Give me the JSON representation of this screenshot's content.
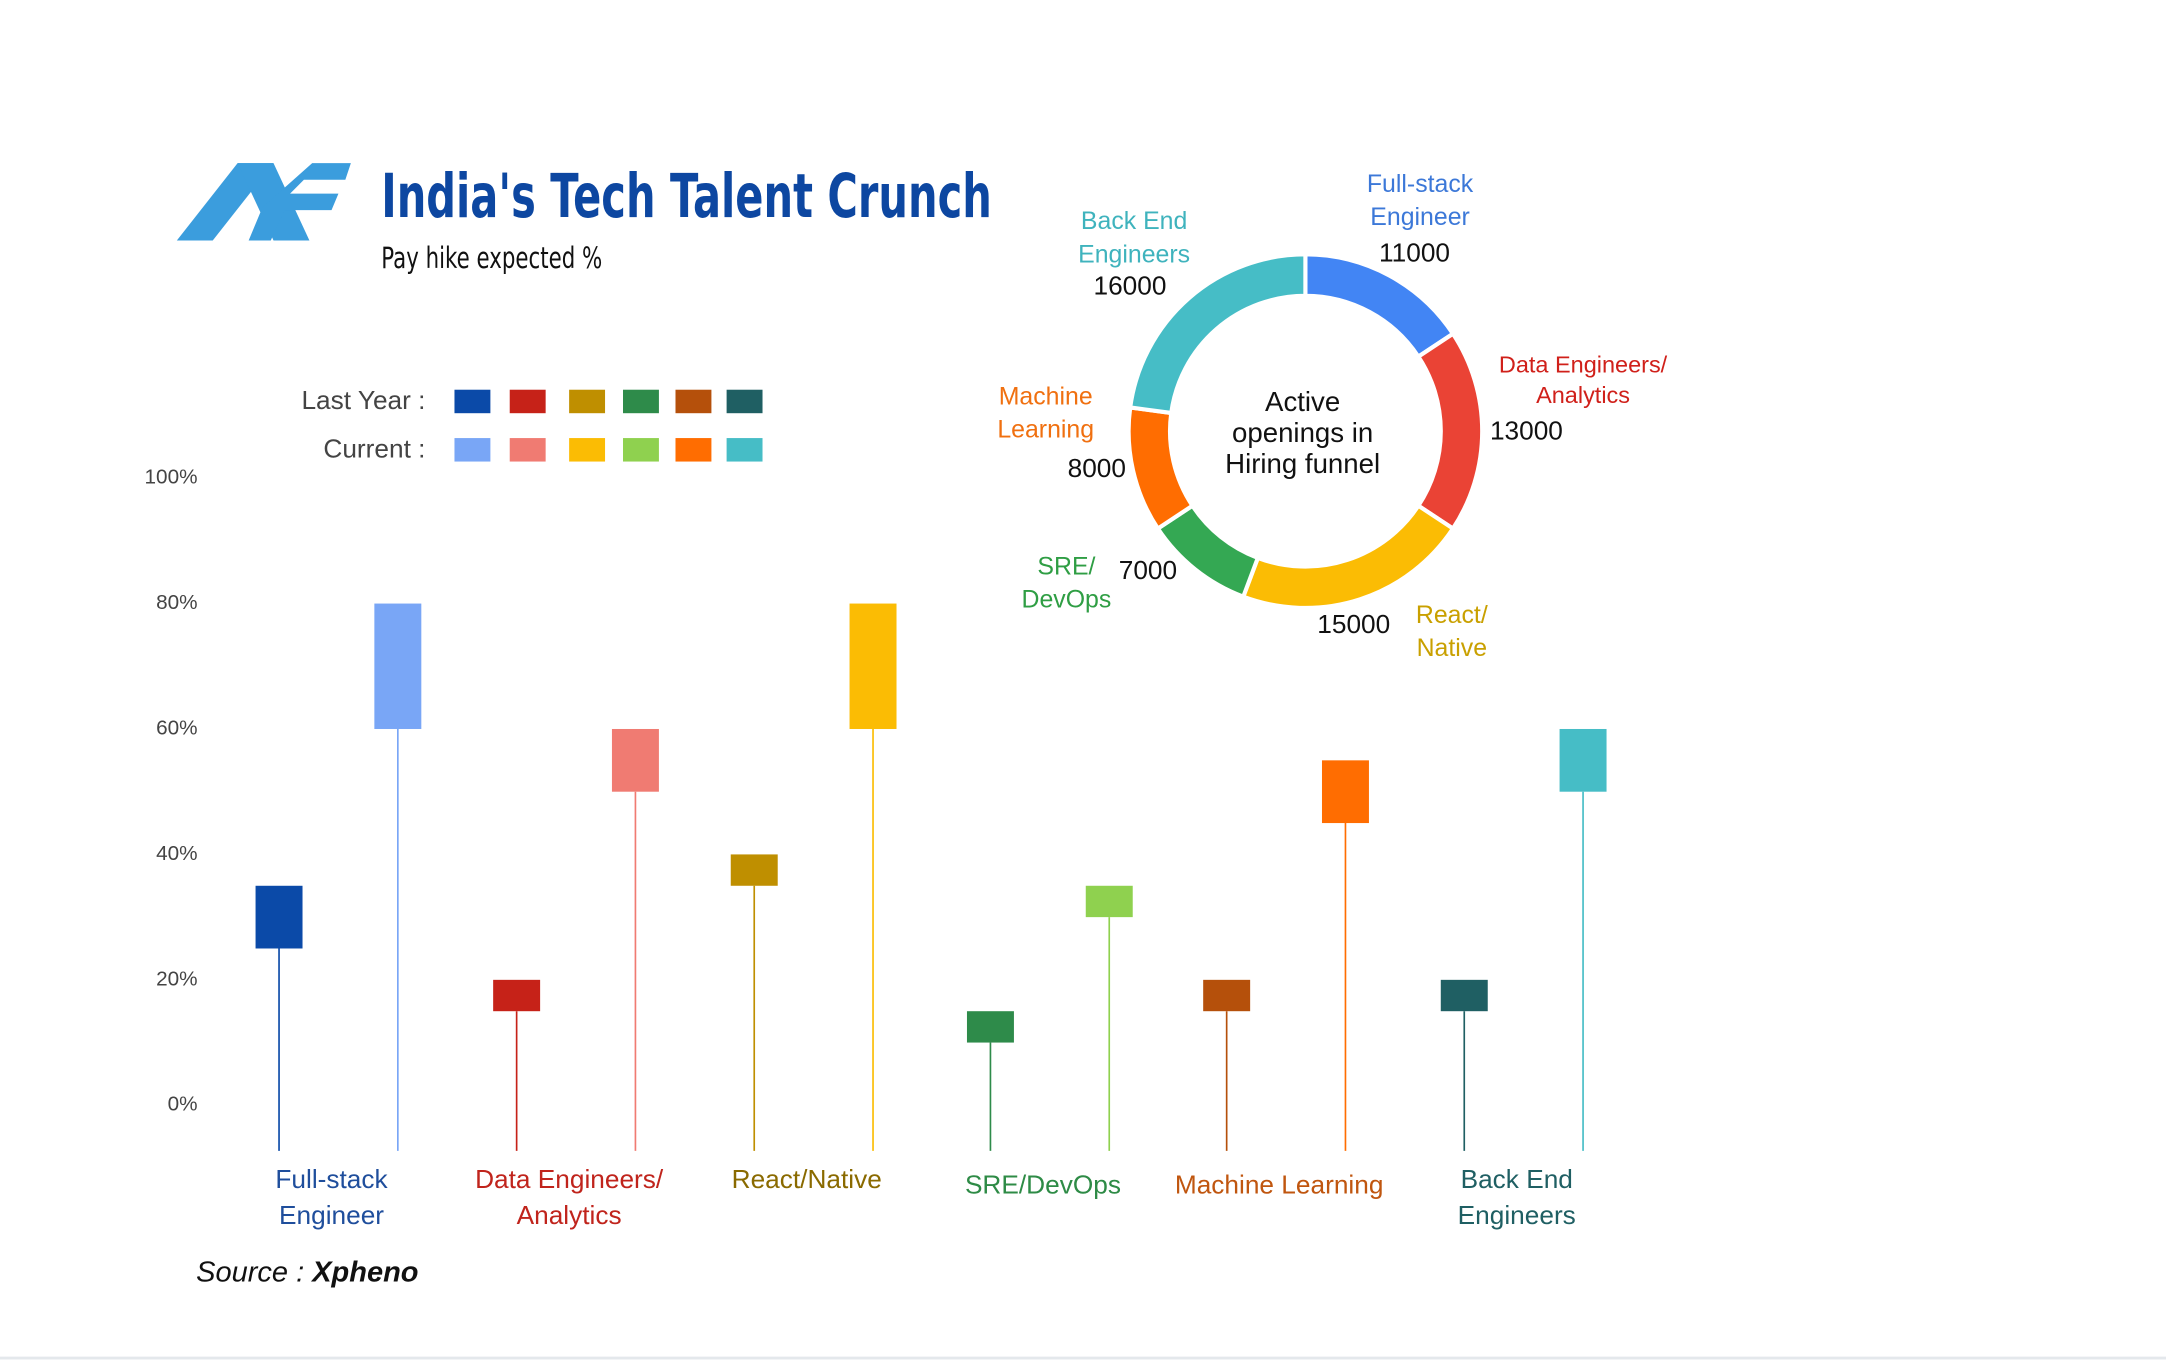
{
  "header": {
    "title": "India's Tech Talent Crunch",
    "subtitle": "Pay hike expected %"
  },
  "source": {
    "label": "Source :",
    "name": "Xpheno"
  },
  "chart_data": [
    {
      "type": "range",
      "categories": [
        [
          "Full-stack",
          "Engineer"
        ],
        [
          "Data Engineers/",
          "Analytics"
        ],
        [
          "React/Native"
        ],
        [
          "SRE/DevOps"
        ],
        [
          "Machine Learning"
        ],
        [
          "Back End",
          "Engineers"
        ]
      ],
      "category_colors": [
        "#1f4e9c",
        "#c0241c",
        "#8a6a00",
        "#2e8b46",
        "#c0560f",
        "#1f5f63"
      ],
      "series": [
        {
          "name": "Last Year :",
          "colors": [
            "#0b4aa8",
            "#c62218",
            "#bf8f00",
            "#2e8b4a",
            "#b5500b",
            "#1f5f63"
          ],
          "low": [
            25,
            15,
            35,
            10,
            15,
            15
          ],
          "high": [
            35,
            20,
            40,
            15,
            20,
            20
          ]
        },
        {
          "name": "Current :",
          "colors": [
            "#79a6f6",
            "#f07b72",
            "#fbbc04",
            "#8fd14f",
            "#ff6d01",
            "#46bdc6"
          ],
          "low": [
            60,
            50,
            60,
            30,
            45,
            50
          ],
          "high": [
            80,
            60,
            80,
            35,
            55,
            60
          ]
        }
      ],
      "ylim": [
        0,
        100
      ],
      "yticks": [
        {
          "value": 0,
          "label": "0%"
        },
        {
          "value": 20,
          "label": "20%"
        },
        {
          "value": 40,
          "label": "40%"
        },
        {
          "value": 60,
          "label": "60%"
        },
        {
          "value": 80,
          "label": "80%"
        },
        {
          "value": 100,
          "label": "100%"
        }
      ]
    },
    {
      "type": "donut",
      "center_label": [
        "Active",
        "openings in",
        "Hiring funnel"
      ],
      "categories": [
        [
          "Full-stack",
          "Engineer"
        ],
        [
          "Data Engineers/",
          "Analytics"
        ],
        [
          "React/",
          "Native"
        ],
        [
          "SRE/",
          "DevOps"
        ],
        [
          "Machine",
          "Learning"
        ],
        [
          "Back End",
          "Engineers"
        ]
      ],
      "values": [
        11000,
        13000,
        15000,
        7000,
        8000,
        16000
      ],
      "colors": [
        "#4285f4",
        "#ea4335",
        "#fbbc04",
        "#34a853",
        "#ff6d01",
        "#46bdc6"
      ],
      "label_colors": [
        "#3c78d8",
        "#d0201a",
        "#c9a000",
        "#2f9e44",
        "#f07010",
        "#3fb3bd"
      ]
    }
  ]
}
